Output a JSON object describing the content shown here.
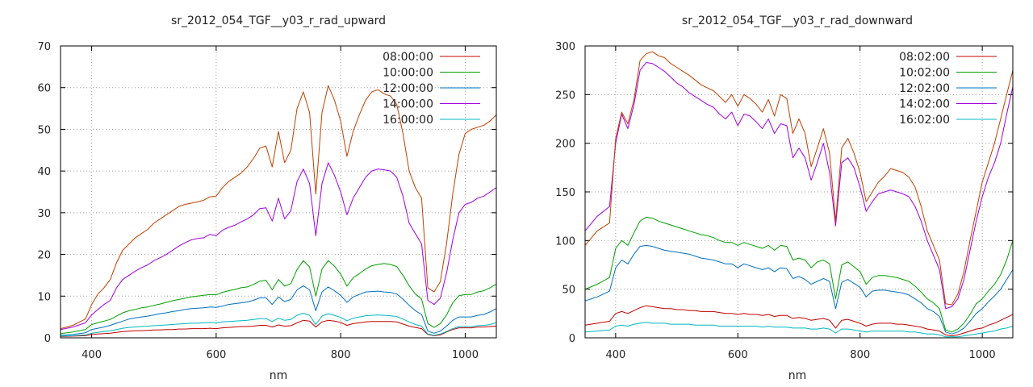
{
  "chart_data": [
    {
      "type": "line",
      "title": "sr_2012_054_TGF__y03_r_rad_upward",
      "xlabel": "nm",
      "ylabel": "",
      "xlim": [
        350,
        1050
      ],
      "ylim": [
        0,
        70
      ],
      "xticks": [
        400,
        600,
        800,
        1000
      ],
      "yticks": [
        0,
        10,
        20,
        30,
        40,
        50,
        60,
        70
      ],
      "grid": true,
      "legend_position": "top-right",
      "x": [
        350,
        370,
        390,
        400,
        410,
        420,
        430,
        440,
        450,
        460,
        470,
        480,
        490,
        500,
        510,
        520,
        530,
        540,
        550,
        560,
        570,
        580,
        590,
        600,
        610,
        620,
        630,
        640,
        650,
        660,
        670,
        680,
        690,
        700,
        710,
        720,
        730,
        740,
        750,
        760,
        770,
        780,
        790,
        800,
        810,
        820,
        830,
        840,
        850,
        860,
        870,
        880,
        890,
        900,
        910,
        920,
        930,
        940,
        950,
        960,
        970,
        980,
        990,
        1000,
        1010,
        1020,
        1030,
        1040,
        1050
      ],
      "series": [
        {
          "name": "08:00:00",
          "color": "#c00000",
          "values": [
            0.3,
            0.4,
            0.5,
            0.8,
            0.9,
            1.0,
            1.1,
            1.3,
            1.5,
            1.6,
            1.7,
            1.7,
            1.8,
            1.9,
            1.9,
            2.0,
            2.0,
            2.1,
            2.1,
            2.2,
            2.2,
            2.2,
            2.3,
            2.2,
            2.4,
            2.5,
            2.6,
            2.7,
            2.7,
            2.8,
            3.0,
            3.0,
            2.6,
            3.1,
            2.8,
            2.9,
            3.6,
            4.2,
            4.0,
            2.6,
            3.8,
            4.2,
            4.0,
            3.7,
            3.0,
            3.4,
            3.6,
            3.8,
            3.9,
            3.9,
            3.9,
            3.9,
            3.8,
            3.3,
            2.8,
            2.5,
            2.2,
            0.8,
            0.5,
            0.7,
            1.4,
            2.0,
            2.4,
            2.4,
            2.4,
            2.6,
            2.6,
            2.7,
            2.8
          ]
        },
        {
          "name": "10:00:00",
          "color": "#00a000",
          "values": [
            1.0,
            1.4,
            2.0,
            3.2,
            3.6,
            4.0,
            4.4,
            5.2,
            6.0,
            6.5,
            6.8,
            7.2,
            7.4,
            7.8,
            8.1,
            8.5,
            8.9,
            9.2,
            9.5,
            9.8,
            10.0,
            10.2,
            10.4,
            10.3,
            10.9,
            11.3,
            11.6,
            12.0,
            12.2,
            12.8,
            13.6,
            13.8,
            11.5,
            14.0,
            12.4,
            13.0,
            16.4,
            18.5,
            17.0,
            10.0,
            16.5,
            18.5,
            17.2,
            15.3,
            12.4,
            14.4,
            15.4,
            16.5,
            17.3,
            17.6,
            17.8,
            17.6,
            17.1,
            15.0,
            12.5,
            10.5,
            9.3,
            3.4,
            2.5,
            3.4,
            5.5,
            8.4,
            10.1,
            10.4,
            10.4,
            11.0,
            11.3,
            12.0,
            12.9
          ]
        },
        {
          "name": "12:00:00",
          "color": "#0070c0",
          "values": [
            0.6,
            0.8,
            1.2,
            2.0,
            2.3,
            2.6,
            3.0,
            3.5,
            4.0,
            4.5,
            4.8,
            5.0,
            5.2,
            5.5,
            5.8,
            6.0,
            6.3,
            6.5,
            6.8,
            7.0,
            7.1,
            7.2,
            7.4,
            7.3,
            7.6,
            8.0,
            8.2,
            8.4,
            8.6,
            9.0,
            9.6,
            9.6,
            8.0,
            9.8,
            8.7,
            9.2,
            11.5,
            12.5,
            11.5,
            6.5,
            11.0,
            12.2,
            11.3,
            10.2,
            8.5,
            9.8,
            10.4,
            11.0,
            11.1,
            11.2,
            11.0,
            10.9,
            10.5,
            9.3,
            7.8,
            6.5,
            5.6,
            1.6,
            1.1,
            1.6,
            2.8,
            4.2,
            5.0,
            5.0,
            5.0,
            5.4,
            5.6,
            6.2,
            7.0
          ]
        },
        {
          "name": "14:00:00",
          "color": "#a000e0",
          "values": [
            2.0,
            2.6,
            3.6,
            5.5,
            6.8,
            8.0,
            9.0,
            12.0,
            14.0,
            15.0,
            16.0,
            16.8,
            17.5,
            18.5,
            19.2,
            20.0,
            21.0,
            22.0,
            22.8,
            23.5,
            23.8,
            24.0,
            24.8,
            24.5,
            25.8,
            26.5,
            27.0,
            27.8,
            28.5,
            29.5,
            31.0,
            31.2,
            28.0,
            33.5,
            28.5,
            30.5,
            37.5,
            40.5,
            37.0,
            24.5,
            37.0,
            42.0,
            39.0,
            35.0,
            29.5,
            33.5,
            36.0,
            38.5,
            40.0,
            40.5,
            40.3,
            40.0,
            38.5,
            34.0,
            27.5,
            25.0,
            22.5,
            9.0,
            8.0,
            9.5,
            15.5,
            23.5,
            30.0,
            32.0,
            32.5,
            33.5,
            34.0,
            35.0,
            36.0
          ]
        },
        {
          "name": "16:00:00",
          "color": "#00b8c0",
          "values": [
            0.4,
            0.5,
            0.7,
            1.1,
            1.3,
            1.5,
            1.7,
            2.0,
            2.3,
            2.5,
            2.6,
            2.7,
            2.8,
            2.9,
            3.0,
            3.1,
            3.2,
            3.3,
            3.4,
            3.5,
            3.5,
            3.6,
            3.7,
            3.6,
            3.8,
            3.9,
            4.0,
            4.1,
            4.2,
            4.4,
            4.6,
            4.6,
            3.9,
            4.7,
            4.2,
            4.4,
            5.4,
            5.9,
            5.4,
            3.2,
            5.2,
            5.8,
            5.4,
            4.9,
            4.1,
            4.7,
            5.0,
            5.3,
            5.4,
            5.5,
            5.4,
            5.3,
            5.1,
            4.5,
            3.8,
            3.2,
            2.8,
            0.9,
            0.6,
            0.9,
            1.5,
            2.2,
            2.7,
            2.7,
            2.7,
            2.9,
            3.0,
            3.2,
            3.6
          ]
        },
        {
          "name": "",
          "color": "#c04000",
          "values": [
            2.2,
            3.0,
            4.5,
            8.0,
            10.5,
            12.0,
            14.0,
            18.0,
            21.0,
            22.5,
            24.0,
            25.0,
            26.0,
            27.5,
            28.5,
            29.5,
            30.5,
            31.5,
            32.0,
            32.3,
            32.6,
            33.0,
            33.8,
            34.0,
            36.0,
            37.5,
            38.5,
            39.5,
            41.0,
            43.0,
            45.5,
            46.0,
            41.0,
            49.5,
            42.0,
            45.0,
            55.0,
            59.0,
            54.0,
            34.5,
            54.0,
            60.5,
            57.0,
            52.0,
            43.5,
            49.5,
            53.5,
            57.0,
            59.0,
            59.5,
            58.5,
            58.0,
            56.0,
            49.0,
            40.0,
            36.0,
            33.5,
            12.0,
            11.0,
            13.5,
            22.5,
            34.5,
            44.0,
            49.0,
            50.0,
            50.5,
            51.0,
            52.0,
            53.5
          ]
        }
      ]
    },
    {
      "type": "line",
      "title": "sr_2012_054_TGF__y03_r_rad_downward",
      "xlabel": "nm",
      "ylabel": "",
      "xlim": [
        350,
        1050
      ],
      "ylim": [
        0,
        300
      ],
      "xticks": [
        400,
        600,
        800,
        1000
      ],
      "yticks": [
        0,
        50,
        100,
        150,
        200,
        250,
        300
      ],
      "grid": true,
      "legend_position": "top-right",
      "x": [
        350,
        370,
        390,
        400,
        410,
        420,
        430,
        440,
        450,
        460,
        470,
        480,
        490,
        500,
        510,
        520,
        530,
        540,
        550,
        560,
        570,
        580,
        590,
        600,
        610,
        620,
        630,
        640,
        650,
        660,
        670,
        680,
        690,
        700,
        710,
        720,
        730,
        740,
        750,
        760,
        770,
        780,
        790,
        800,
        810,
        820,
        830,
        840,
        850,
        860,
        870,
        880,
        890,
        900,
        910,
        920,
        930,
        940,
        950,
        960,
        970,
        980,
        990,
        1000,
        1010,
        1020,
        1030,
        1040,
        1050
      ],
      "series": [
        {
          "name": "08:02:00",
          "color": "#c00000",
          "values": [
            13,
            15,
            17,
            25,
            27,
            25,
            28,
            31,
            33,
            32,
            31,
            30,
            30,
            29,
            29,
            28,
            28,
            27,
            27,
            27,
            26,
            25,
            25,
            24,
            25,
            24,
            24,
            23,
            24,
            22,
            23,
            23,
            20,
            21,
            20,
            18,
            19,
            20,
            18,
            10,
            18,
            19,
            17,
            15,
            12,
            14,
            15,
            15,
            15,
            14,
            14,
            13,
            12,
            11,
            9,
            8,
            7,
            3,
            2,
            3,
            5,
            7,
            9,
            10,
            13,
            15,
            18,
            21,
            24
          ]
        },
        {
          "name": "10:02:00",
          "color": "#00a000",
          "values": [
            50,
            55,
            62,
            92,
            100,
            95,
            108,
            120,
            124,
            123,
            120,
            118,
            116,
            114,
            112,
            110,
            108,
            106,
            105,
            103,
            100,
            98,
            98,
            95,
            98,
            96,
            94,
            92,
            95,
            90,
            95,
            94,
            80,
            82,
            80,
            72,
            78,
            80,
            76,
            40,
            75,
            78,
            73,
            68,
            55,
            62,
            64,
            64,
            63,
            62,
            60,
            58,
            53,
            47,
            40,
            36,
            30,
            8,
            6,
            9,
            15,
            24,
            35,
            40,
            48,
            55,
            65,
            80,
            100
          ]
        },
        {
          "name": "12:02:00",
          "color": "#0070c0",
          "values": [
            38,
            42,
            48,
            72,
            80,
            76,
            86,
            94,
            95,
            94,
            92,
            90,
            89,
            88,
            87,
            86,
            84,
            82,
            81,
            80,
            78,
            76,
            76,
            72,
            76,
            74,
            72,
            70,
            72,
            68,
            72,
            71,
            61,
            63,
            60,
            55,
            58,
            61,
            58,
            30,
            57,
            60,
            56,
            52,
            42,
            48,
            49,
            49,
            48,
            47,
            46,
            44,
            40,
            36,
            30,
            27,
            22,
            6,
            4,
            6,
            10,
            17,
            25,
            30,
            37,
            43,
            50,
            60,
            70
          ]
        },
        {
          "name": "14:02:00",
          "color": "#a000e0",
          "values": [
            110,
            125,
            135,
            200,
            230,
            215,
            240,
            275,
            283,
            282,
            278,
            274,
            268,
            262,
            258,
            252,
            248,
            244,
            240,
            237,
            230,
            225,
            232,
            218,
            230,
            228,
            222,
            215,
            225,
            210,
            220,
            218,
            185,
            195,
            185,
            162,
            180,
            200,
            170,
            115,
            180,
            185,
            175,
            155,
            130,
            140,
            148,
            150,
            152,
            150,
            148,
            145,
            135,
            120,
            100,
            85,
            70,
            30,
            32,
            40,
            60,
            90,
            120,
            145,
            165,
            180,
            200,
            230,
            258
          ]
        },
        {
          "name": "16:02:00",
          "color": "#00b8c0",
          "values": [
            6,
            7,
            8,
            12,
            13,
            12,
            14,
            15,
            16,
            15,
            15,
            15,
            14,
            14,
            14,
            14,
            13,
            13,
            13,
            13,
            12,
            12,
            12,
            12,
            12,
            12,
            12,
            11,
            12,
            11,
            11,
            11,
            10,
            10,
            10,
            9,
            9,
            10,
            9,
            5,
            9,
            9,
            8,
            7,
            6,
            7,
            7,
            7,
            7,
            7,
            7,
            6,
            6,
            5,
            4,
            4,
            3,
            1,
            1,
            1,
            2,
            3,
            4,
            5,
            6,
            7,
            9,
            10,
            12
          ]
        },
        {
          "name": "",
          "color": "#c04000",
          "values": [
            95,
            110,
            118,
            205,
            232,
            220,
            245,
            285,
            292,
            294,
            290,
            288,
            282,
            278,
            274,
            270,
            265,
            260,
            257,
            254,
            248,
            242,
            250,
            238,
            250,
            246,
            240,
            232,
            245,
            228,
            250,
            246,
            210,
            225,
            210,
            176,
            195,
            215,
            190,
            120,
            195,
            205,
            190,
            170,
            140,
            150,
            160,
            166,
            174,
            172,
            170,
            165,
            155,
            135,
            110,
            95,
            80,
            35,
            34,
            45,
            68,
            100,
            130,
            160,
            180,
            200,
            225,
            250,
            275
          ]
        }
      ]
    }
  ]
}
